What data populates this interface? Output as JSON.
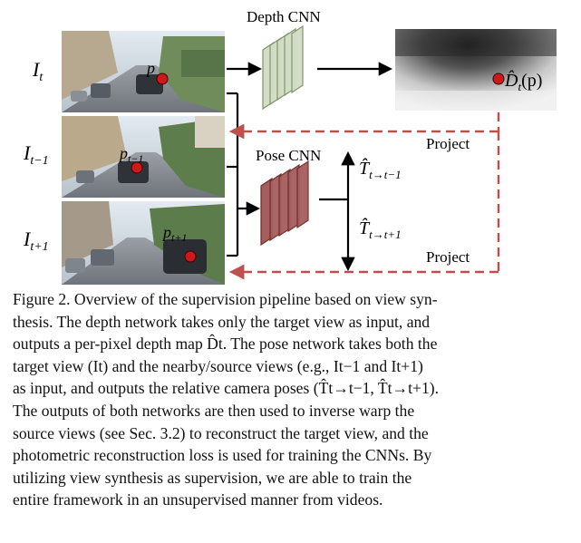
{
  "figure": {
    "depth_cnn_label": "Depth CNN",
    "pose_cnn_label": "Pose CNN",
    "project_label_top": "Project",
    "project_label_bottom": "Project",
    "frames": {
      "target": {
        "label_base": "I",
        "label_sub": "t",
        "point_base": "p",
        "point_sub": ""
      },
      "prev": {
        "label_base": "I",
        "label_sub": "t−1",
        "point_base": "p",
        "point_sub": "t−1"
      },
      "next": {
        "label_base": "I",
        "label_sub": "t+1",
        "point_base": "p",
        "point_sub": "t+1"
      }
    },
    "depth_output": {
      "label": "D̂",
      "sub": "t",
      "arg": "(p)"
    },
    "pose_outputs": {
      "to_prev": {
        "base": "T̂",
        "sub": "t→t−1"
      },
      "to_next": {
        "base": "T̂",
        "sub": "t→t+1"
      }
    },
    "colors": {
      "depth_net_fill": "#d2dec6",
      "depth_net_stroke": "#7d9168",
      "pose_net_fill": "#a55d5d",
      "pose_net_stroke": "#6e2a2a",
      "project_arrow": "#c0504d",
      "point_marker": "#cc1a1a",
      "arrow": "#000000"
    }
  },
  "caption": {
    "lines": [
      "Figure 2.  Overview of the supervision pipeline based on view syn-",
      "thesis. The depth network takes only the target view as input, and",
      "outputs a per-pixel depth map D̂t. The pose network takes both the",
      "target view (It) and the nearby/source views (e.g., It−1 and It+1)",
      "as input, and outputs the relative camera poses (T̂t→t−1, T̂t→t+1).",
      "The outputs of both networks are then used to inverse warp the",
      "source views (see Sec. 3.2) to reconstruct the target view, and the",
      "photometric reconstruction loss is used for training the CNNs. By",
      "utilizing view synthesis as supervision, we are able to train the",
      "entire framework in an unsupervised manner from videos."
    ]
  }
}
